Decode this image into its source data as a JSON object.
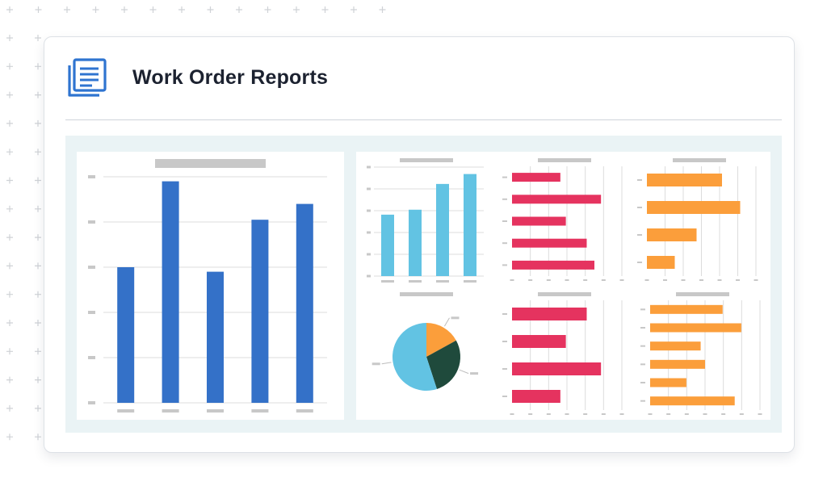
{
  "header": {
    "title": "Work Order Reports",
    "icon": "report-document-icon"
  },
  "colors": {
    "blue": "#3471c8",
    "light_blue": "#62c3e3",
    "red": "#e5335f",
    "orange": "#fb9e3b",
    "dark_green": "#1f4a3c",
    "placeholder_gray": "#c8c8c8",
    "grid": "#dcdcdc"
  },
  "chart_data": [
    {
      "type": "bar",
      "orientation": "vertical",
      "color": "blue",
      "values": [
        60,
        98,
        58,
        81,
        88
      ],
      "ylim": [
        0,
        100
      ],
      "grid": true
    },
    {
      "type": "bar",
      "orientation": "vertical",
      "color": "light_blue",
      "values": [
        62,
        67,
        93,
        103
      ],
      "ylim": [
        0,
        110
      ],
      "grid": true
    },
    {
      "type": "bar",
      "orientation": "horizontal",
      "color": "red",
      "values": [
        44,
        81,
        49,
        68,
        75
      ],
      "xlim": [
        0,
        100
      ],
      "grid": true
    },
    {
      "type": "bar",
      "orientation": "horizontal",
      "color": "orange",
      "values": [
        62,
        77,
        41,
        23
      ],
      "xlim": [
        0,
        90
      ],
      "grid": true
    },
    {
      "type": "pie",
      "values": [
        17,
        28,
        55
      ],
      "colors": [
        "orange",
        "dark_green",
        "light_blue"
      ]
    },
    {
      "type": "bar",
      "orientation": "horizontal",
      "color": "red",
      "values": [
        68,
        49,
        81,
        44
      ],
      "xlim": [
        0,
        100
      ],
      "grid": true
    },
    {
      "type": "bar",
      "orientation": "horizontal",
      "color": "orange",
      "values": [
        66,
        83,
        46,
        50,
        33,
        77
      ],
      "xlim": [
        0,
        100
      ],
      "grid": true
    }
  ]
}
